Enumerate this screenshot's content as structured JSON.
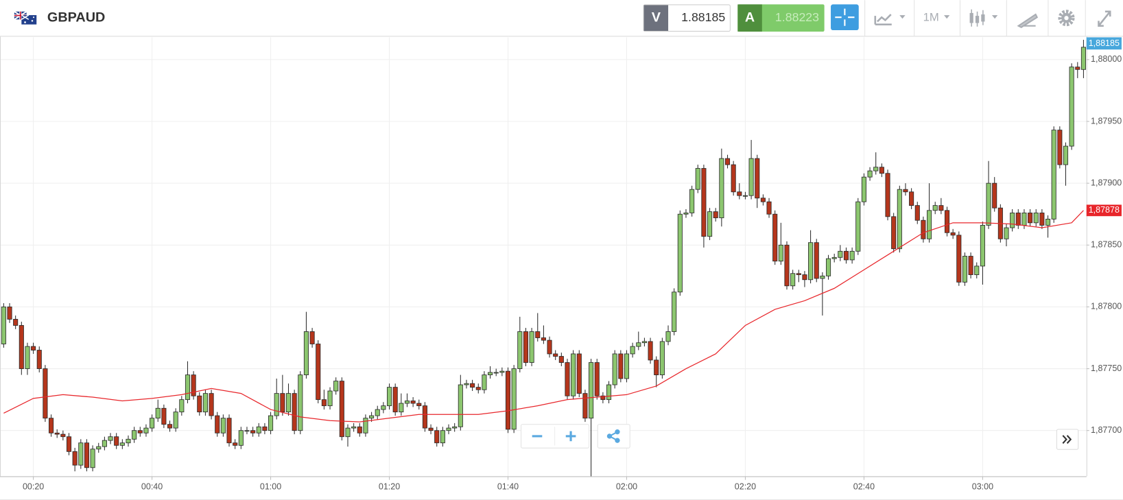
{
  "header": {
    "symbol": "GBPAUD",
    "sell_label": "V",
    "sell_price": "1.88185",
    "buy_label": "A",
    "buy_price": "1.88223",
    "timeframe": "1M",
    "last_price_label": "1,88185"
  },
  "chart_data": {
    "type": "candlestick",
    "up_color": "#8cc66f",
    "down_color": "#b5361c",
    "edge_color": "#2a2a2a",
    "grid": true,
    "ylim": [
      1.87663,
      1.88018
    ],
    "yticks": [
      {
        "value": 1.877,
        "label": "1,87700"
      },
      {
        "value": 1.8775,
        "label": "1,87750"
      },
      {
        "value": 1.878,
        "label": "1,87800"
      },
      {
        "value": 1.8785,
        "label": "1,87850"
      },
      {
        "value": 1.879,
        "label": "1,87900"
      },
      {
        "value": 1.8795,
        "label": "1,87950"
      },
      {
        "value": 1.88,
        "label": "1,88000"
      }
    ],
    "xticks": [
      "00:20",
      "00:40",
      "01:00",
      "01:20",
      "01:40",
      "02:00",
      "02:20",
      "02:40",
      "03:00"
    ],
    "x": [
      "00:15",
      "00:16",
      "00:17",
      "00:18",
      "00:19",
      "00:20",
      "00:21",
      "00:22",
      "00:23",
      "00:24",
      "00:25",
      "00:26",
      "00:27",
      "00:28",
      "00:29",
      "00:30",
      "00:31",
      "00:32",
      "00:33",
      "00:34",
      "00:35",
      "00:36",
      "00:37",
      "00:38",
      "00:39",
      "00:40",
      "00:41",
      "00:42",
      "00:43",
      "00:44",
      "00:45",
      "00:46",
      "00:47",
      "00:48",
      "00:49",
      "00:50",
      "00:51",
      "00:52",
      "00:53",
      "00:54",
      "00:55",
      "00:56",
      "00:57",
      "00:58",
      "00:59",
      "01:00",
      "01:01",
      "01:02",
      "01:03",
      "01:04",
      "01:05",
      "01:06",
      "01:07",
      "01:08",
      "01:09",
      "01:10",
      "01:11",
      "01:12",
      "01:13",
      "01:14",
      "01:15",
      "01:16",
      "01:17",
      "01:18",
      "01:19",
      "01:20",
      "01:21",
      "01:22",
      "01:23",
      "01:24",
      "01:25",
      "01:26",
      "01:27",
      "01:28",
      "01:29",
      "01:30",
      "01:31",
      "01:32",
      "01:33",
      "01:34",
      "01:35",
      "01:36",
      "01:37",
      "01:38",
      "01:39",
      "01:40",
      "01:41",
      "01:42",
      "01:43",
      "01:44",
      "01:45",
      "01:46",
      "01:47",
      "01:48",
      "01:49",
      "01:50",
      "01:51",
      "01:52",
      "01:53",
      "01:54",
      "01:55",
      "01:56",
      "01:57",
      "01:58",
      "01:59",
      "02:00",
      "02:01",
      "02:02",
      "02:03",
      "02:04",
      "02:05",
      "02:06",
      "02:07",
      "02:08",
      "02:09",
      "02:10",
      "02:11",
      "02:12",
      "02:13",
      "02:14",
      "02:15",
      "02:16",
      "02:17",
      "02:18",
      "02:19",
      "02:20",
      "02:21",
      "02:22",
      "02:23",
      "02:24",
      "02:25",
      "02:26",
      "02:27",
      "02:28",
      "02:29",
      "02:30",
      "02:31",
      "02:32",
      "02:33",
      "02:34",
      "02:35",
      "02:36",
      "02:37",
      "02:38",
      "02:39",
      "02:40",
      "02:41",
      "02:42",
      "02:43",
      "02:44",
      "02:45",
      "02:46",
      "02:47",
      "02:48",
      "02:49",
      "02:50",
      "02:51",
      "02:52",
      "02:53",
      "02:54",
      "02:55",
      "02:56",
      "02:57",
      "02:58",
      "02:59",
      "03:00",
      "03:01",
      "03:02",
      "03:03",
      "03:04",
      "03:05",
      "03:06",
      "03:07",
      "03:08",
      "03:09",
      "03:10",
      "03:11",
      "03:12",
      "03:13",
      "03:14",
      "03:15",
      "03:16",
      "03:17"
    ],
    "open": [
      1.8777,
      1.878,
      1.8779,
      1.87785,
      1.8775,
      1.87768,
      1.87765,
      1.8775,
      1.8771,
      1.87698,
      1.87697,
      1.87695,
      1.87683,
      1.87672,
      1.8769,
      1.8767,
      1.87685,
      1.87687,
      1.87692,
      1.87695,
      1.87688,
      1.8769,
      1.87693,
      1.877,
      1.87698,
      1.87702,
      1.8771,
      1.87718,
      1.87705,
      1.87702,
      1.87715,
      1.87725,
      1.87745,
      1.87728,
      1.87715,
      1.8773,
      1.87712,
      1.87698,
      1.8771,
      1.8769,
      1.87688,
      1.877,
      1.877,
      1.87698,
      1.87703,
      1.877,
      1.87712,
      1.8773,
      1.87715,
      1.8773,
      1.877,
      1.87745,
      1.8778,
      1.8777,
      1.87725,
      1.8772,
      1.87732,
      1.8774,
      1.87695,
      1.87702,
      1.87703,
      1.87698,
      1.8771,
      1.87712,
      1.87717,
      1.8772,
      1.87735,
      1.87715,
      1.87722,
      1.87724,
      1.87722,
      1.8772,
      1.87702,
      1.877,
      1.8769,
      1.877,
      1.87702,
      1.87703,
      1.87737,
      1.87738,
      1.87735,
      1.87733,
      1.87745,
      1.87747,
      1.87747,
      1.87748,
      1.87701,
      1.8775,
      1.8778,
      1.87755,
      1.8778,
      1.87775,
      1.87773,
      1.87762,
      1.8776,
      1.87755,
      1.87728,
      1.87762,
      1.8773,
      1.8771,
      1.87755,
      1.87728,
      1.87725,
      1.87737,
      1.87762,
      1.87742,
      1.87762,
      1.87768,
      1.87771,
      1.87772,
      1.87757,
      1.87745,
      1.87772,
      1.8778,
      1.87812,
      1.87875,
      1.87876,
      1.87895,
      1.87912,
      1.87857,
      1.87877,
      1.87872,
      1.8792,
      1.87915,
      1.87893,
      1.8789,
      1.8789,
      1.8792,
      1.87888,
      1.87885,
      1.87875,
      1.87837,
      1.8785,
      1.87817,
      1.87827,
      1.87826,
      1.87822,
      1.87852,
      1.87823,
      1.87825,
      1.87839,
      1.8784,
      1.87845,
      1.87838,
      1.87845,
      1.87885,
      1.87905,
      1.8791,
      1.87913,
      1.87908,
      1.87873,
      1.87847,
      1.87895,
      1.87893,
      1.87882,
      1.8787,
      1.87855,
      1.87878,
      1.87882,
      1.87878,
      1.8786,
      1.87858,
      1.8782,
      1.87841,
      1.87826,
      1.87833,
      1.87866,
      1.879,
      1.8788,
      1.87855,
      1.87864,
      1.87876,
      1.87866,
      1.87876,
      1.87868,
      1.87876,
      1.87866,
      1.87871,
      1.87943,
      1.87915,
      1.8793,
      1.87994,
      1.87992
    ],
    "high": [
      1.87803,
      1.87803,
      1.87793,
      1.87788,
      1.87771,
      1.87771,
      1.87768,
      1.87753,
      1.87713,
      1.87701,
      1.877,
      1.87698,
      1.87686,
      1.87693,
      1.87693,
      1.87688,
      1.8769,
      1.87695,
      1.87698,
      1.87698,
      1.87693,
      1.87696,
      1.87703,
      1.87703,
      1.87705,
      1.87713,
      1.87725,
      1.87721,
      1.87708,
      1.87718,
      1.87728,
      1.87756,
      1.87748,
      1.87731,
      1.87733,
      1.87733,
      1.87715,
      1.87713,
      1.87713,
      1.87693,
      1.87703,
      1.87703,
      1.87703,
      1.87706,
      1.87706,
      1.87715,
      1.87742,
      1.87745,
      1.87738,
      1.87733,
      1.87748,
      1.87796,
      1.87783,
      1.87773,
      1.87733,
      1.87735,
      1.87743,
      1.87743,
      1.87705,
      1.87706,
      1.87706,
      1.87713,
      1.87715,
      1.8772,
      1.87723,
      1.87738,
      1.87738,
      1.8773,
      1.8773,
      1.87727,
      1.87725,
      1.87723,
      1.87705,
      1.87703,
      1.87703,
      1.87705,
      1.87706,
      1.87745,
      1.87741,
      1.87741,
      1.87738,
      1.87748,
      1.87752,
      1.8775,
      1.87751,
      1.87751,
      1.87753,
      1.87792,
      1.87783,
      1.87783,
      1.87795,
      1.87785,
      1.87776,
      1.87765,
      1.87763,
      1.87758,
      1.87765,
      1.87765,
      1.87733,
      1.87758,
      1.87758,
      1.87731,
      1.8774,
      1.87765,
      1.87765,
      1.87765,
      1.87771,
      1.8778,
      1.87775,
      1.87775,
      1.8776,
      1.87775,
      1.87785,
      1.87815,
      1.87878,
      1.87879,
      1.87898,
      1.87915,
      1.87915,
      1.8788,
      1.8788,
      1.87928,
      1.87923,
      1.87918,
      1.879,
      1.87893,
      1.87935,
      1.87923,
      1.87891,
      1.87888,
      1.87878,
      1.87868,
      1.87853,
      1.8783,
      1.8783,
      1.87829,
      1.87862,
      1.87855,
      1.87828,
      1.87842,
      1.87843,
      1.8785,
      1.87848,
      1.87848,
      1.87888,
      1.87908,
      1.87913,
      1.87925,
      1.87916,
      1.87911,
      1.87876,
      1.87898,
      1.879,
      1.87896,
      1.87885,
      1.87873,
      1.879,
      1.87885,
      1.87888,
      1.87881,
      1.87863,
      1.87861,
      1.87844,
      1.87844,
      1.87836,
      1.87869,
      1.87918,
      1.87905,
      1.87883,
      1.87867,
      1.87879,
      1.87879,
      1.87879,
      1.87879,
      1.87879,
      1.87879,
      1.87874,
      1.87946,
      1.87946,
      1.87933,
      1.87997,
      1.87998,
      1.88016
    ],
    "low": [
      1.87767,
      1.87787,
      1.87782,
      1.87745,
      1.87745,
      1.87762,
      1.87747,
      1.87707,
      1.87695,
      1.87694,
      1.87692,
      1.8768,
      1.87667,
      1.87669,
      1.87667,
      1.87667,
      1.87682,
      1.87684,
      1.87689,
      1.87685,
      1.87685,
      1.87687,
      1.8769,
      1.87695,
      1.87695,
      1.87699,
      1.87707,
      1.87702,
      1.87699,
      1.87699,
      1.87712,
      1.87722,
      1.87725,
      1.87712,
      1.87712,
      1.87709,
      1.87695,
      1.87695,
      1.87687,
      1.87685,
      1.87685,
      1.87697,
      1.87695,
      1.87695,
      1.87697,
      1.87697,
      1.87709,
      1.87712,
      1.87712,
      1.87697,
      1.87697,
      1.87742,
      1.87767,
      1.87722,
      1.87717,
      1.87717,
      1.87729,
      1.87692,
      1.87687,
      1.87699,
      1.87695,
      1.87695,
      1.87707,
      1.87709,
      1.87714,
      1.87717,
      1.87712,
      1.87712,
      1.87719,
      1.87719,
      1.87717,
      1.87699,
      1.87697,
      1.87687,
      1.87687,
      1.87697,
      1.87699,
      1.877,
      1.87734,
      1.87732,
      1.8773,
      1.8773,
      1.87742,
      1.87744,
      1.87744,
      1.87698,
      1.87698,
      1.87747,
      1.87752,
      1.87752,
      1.87772,
      1.8777,
      1.87759,
      1.87757,
      1.87752,
      1.87725,
      1.87725,
      1.87727,
      1.87707,
      1.87663,
      1.87725,
      1.87722,
      1.87722,
      1.87734,
      1.87739,
      1.87739,
      1.87759,
      1.87765,
      1.87768,
      1.87754,
      1.87735,
      1.87742,
      1.87769,
      1.87777,
      1.87809,
      1.87872,
      1.87873,
      1.87892,
      1.87848,
      1.87854,
      1.87869,
      1.87865,
      1.87912,
      1.8789,
      1.87887,
      1.87887,
      1.87887,
      1.8788,
      1.87882,
      1.87872,
      1.87834,
      1.87834,
      1.87814,
      1.87814,
      1.8782,
      1.87816,
      1.87819,
      1.8782,
      1.87793,
      1.87822,
      1.87836,
      1.87837,
      1.87835,
      1.87835,
      1.87842,
      1.87882,
      1.87902,
      1.87907,
      1.87905,
      1.8787,
      1.87844,
      1.87844,
      1.8789,
      1.87879,
      1.87867,
      1.87852,
      1.87852,
      1.87875,
      1.87875,
      1.87857,
      1.87855,
      1.87817,
      1.87817,
      1.87823,
      1.87823,
      1.87818,
      1.87863,
      1.87877,
      1.87852,
      1.87849,
      1.87861,
      1.87863,
      1.87863,
      1.87865,
      1.87865,
      1.87863,
      1.87856,
      1.87868,
      1.87912,
      1.87898,
      1.87927,
      1.87985,
      1.87985
    ],
    "close": [
      1.878,
      1.8779,
      1.87785,
      1.8775,
      1.87768,
      1.87765,
      1.8775,
      1.8771,
      1.87698,
      1.87697,
      1.87695,
      1.87683,
      1.87672,
      1.8769,
      1.8767,
      1.87685,
      1.87687,
      1.87692,
      1.87695,
      1.87688,
      1.8769,
      1.87693,
      1.877,
      1.87698,
      1.87702,
      1.8771,
      1.87718,
      1.87705,
      1.87702,
      1.87715,
      1.87725,
      1.87745,
      1.87728,
      1.87715,
      1.8773,
      1.87712,
      1.87698,
      1.8771,
      1.8769,
      1.87688,
      1.877,
      1.877,
      1.87698,
      1.87703,
      1.877,
      1.87712,
      1.8773,
      1.87715,
      1.8773,
      1.877,
      1.87745,
      1.8778,
      1.8777,
      1.87725,
      1.8772,
      1.87732,
      1.8774,
      1.87695,
      1.87702,
      1.87703,
      1.87698,
      1.8771,
      1.87712,
      1.87717,
      1.8772,
      1.87735,
      1.87715,
      1.87722,
      1.87724,
      1.87722,
      1.8772,
      1.87702,
      1.877,
      1.8769,
      1.877,
      1.87702,
      1.87703,
      1.87737,
      1.87738,
      1.87735,
      1.87733,
      1.87745,
      1.87747,
      1.87747,
      1.87748,
      1.87701,
      1.8775,
      1.8778,
      1.87755,
      1.8778,
      1.87775,
      1.87773,
      1.87762,
      1.8776,
      1.87755,
      1.87728,
      1.87762,
      1.8773,
      1.8771,
      1.87755,
      1.87728,
      1.87725,
      1.87737,
      1.87762,
      1.87742,
      1.87762,
      1.87768,
      1.87771,
      1.87772,
      1.87757,
      1.87745,
      1.87772,
      1.8778,
      1.87812,
      1.87875,
      1.87876,
      1.87895,
      1.87912,
      1.87857,
      1.87877,
      1.87872,
      1.8792,
      1.87915,
      1.87893,
      1.8789,
      1.8789,
      1.8792,
      1.87888,
      1.87885,
      1.87875,
      1.87837,
      1.8785,
      1.87817,
      1.87827,
      1.87826,
      1.87822,
      1.87852,
      1.87823,
      1.87825,
      1.87839,
      1.8784,
      1.87845,
      1.87838,
      1.87845,
      1.87885,
      1.87905,
      1.8791,
      1.87913,
      1.87908,
      1.87873,
      1.87847,
      1.87895,
      1.87893,
      1.87882,
      1.8787,
      1.87855,
      1.87878,
      1.87882,
      1.87878,
      1.8786,
      1.87858,
      1.8782,
      1.87841,
      1.87826,
      1.87833,
      1.87866,
      1.879,
      1.8788,
      1.87855,
      1.87864,
      1.87876,
      1.87866,
      1.87876,
      1.87868,
      1.87876,
      1.87866,
      1.87871,
      1.87943,
      1.87915,
      1.8793,
      1.87994,
      1.87992,
      1.8801
    ],
    "moving_average": {
      "color": "#e8262b",
      "x": [
        "00:15",
        "00:20",
        "00:25",
        "00:30",
        "00:35",
        "00:40",
        "00:45",
        "00:50",
        "00:55",
        "01:00",
        "01:05",
        "01:10",
        "01:15",
        "01:20",
        "01:25",
        "01:30",
        "01:35",
        "01:40",
        "01:45",
        "01:50",
        "01:55",
        "02:00",
        "02:05",
        "02:10",
        "02:15",
        "02:20",
        "02:25",
        "02:30",
        "02:35",
        "02:40",
        "02:45",
        "02:50",
        "02:55",
        "03:00",
        "03:05",
        "03:10",
        "03:15",
        "03:17"
      ],
      "values": [
        1.87714,
        1.87726,
        1.87729,
        1.87727,
        1.87724,
        1.87726,
        1.87729,
        1.87734,
        1.8773,
        1.87717,
        1.87711,
        1.87708,
        1.87707,
        1.8771,
        1.87713,
        1.87713,
        1.87713,
        1.87716,
        1.8772,
        1.87725,
        1.87727,
        1.87729,
        1.87736,
        1.8775,
        1.87762,
        1.87785,
        1.87798,
        1.87805,
        1.87815,
        1.8783,
        1.87845,
        1.8786,
        1.87868,
        1.87868,
        1.87867,
        1.87864,
        1.87868,
        1.87878
      ],
      "label": {
        "value": 1.87878,
        "label": "1,87878"
      }
    }
  }
}
